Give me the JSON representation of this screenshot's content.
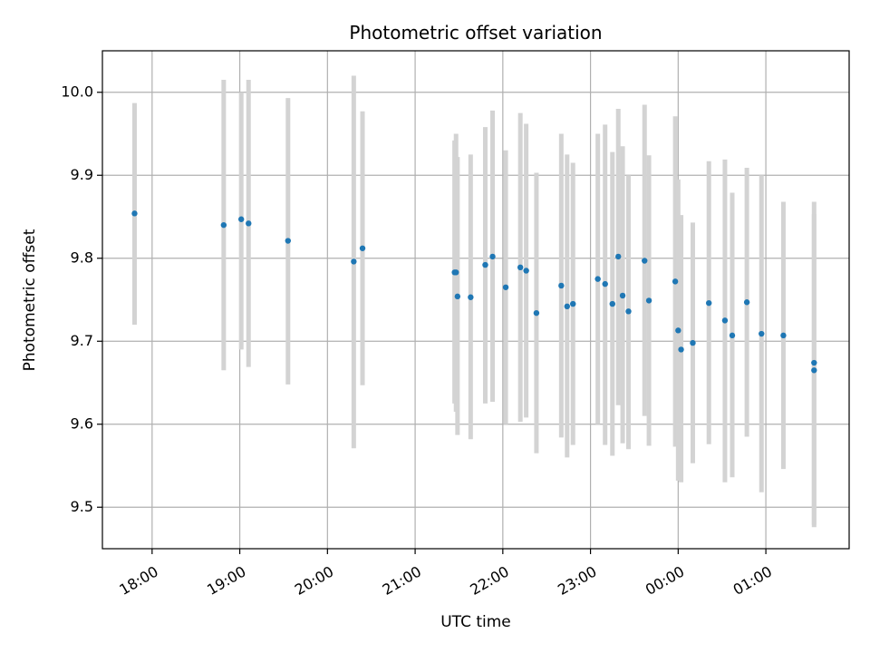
{
  "chart_data": {
    "type": "scatter",
    "title": "Photometric offset variation",
    "xlabel": "UTC time",
    "ylabel": "Photometric offset",
    "xlim": [
      "17:26",
      "01:57"
    ],
    "ylim": [
      9.45,
      10.05
    ],
    "grid": true,
    "x_ticks": [
      "18:00",
      "19:00",
      "20:00",
      "21:00",
      "22:00",
      "23:00",
      "00:00",
      "01:00"
    ],
    "y_ticks": [
      9.5,
      9.6,
      9.7,
      9.8,
      9.9,
      10.0
    ],
    "y_tick_labels": [
      "9.5",
      "9.6",
      "9.7",
      "9.8",
      "9.9",
      "10.0"
    ],
    "colors": {
      "point": "#1f77b4",
      "error_bar": "#d3d3d3",
      "grid": "#b0b0b0"
    },
    "points": [
      {
        "x": "17:48",
        "y": 9.854,
        "ylow": 9.72,
        "yhigh": 9.987
      },
      {
        "x": "18:49",
        "y": 9.84,
        "ylow": 9.665,
        "yhigh": 10.015
      },
      {
        "x": "19:01",
        "y": 9.847,
        "ylow": 9.69,
        "yhigh": 10.0
      },
      {
        "x": "19:06",
        "y": 9.842,
        "ylow": 9.669,
        "yhigh": 10.015
      },
      {
        "x": "19:33",
        "y": 9.821,
        "ylow": 9.648,
        "yhigh": 9.993
      },
      {
        "x": "20:18",
        "y": 9.796,
        "ylow": 9.571,
        "yhigh": 10.02
      },
      {
        "x": "20:24",
        "y": 9.812,
        "ylow": 9.647,
        "yhigh": 9.977
      },
      {
        "x": "21:27",
        "y": 9.783,
        "ylow": 9.625,
        "yhigh": 9.942
      },
      {
        "x": "21:28",
        "y": 9.783,
        "ylow": 9.615,
        "yhigh": 9.95
      },
      {
        "x": "21:29",
        "y": 9.754,
        "ylow": 9.587,
        "yhigh": 9.922
      },
      {
        "x": "21:38",
        "y": 9.753,
        "ylow": 9.582,
        "yhigh": 9.925
      },
      {
        "x": "21:48",
        "y": 9.792,
        "ylow": 9.625,
        "yhigh": 9.958
      },
      {
        "x": "21:53",
        "y": 9.802,
        "ylow": 9.627,
        "yhigh": 9.978
      },
      {
        "x": "22:02",
        "y": 9.765,
        "ylow": 9.6,
        "yhigh": 9.93
      },
      {
        "x": "22:12",
        "y": 9.789,
        "ylow": 9.603,
        "yhigh": 9.975
      },
      {
        "x": "22:16",
        "y": 9.785,
        "ylow": 9.608,
        "yhigh": 9.962
      },
      {
        "x": "22:23",
        "y": 9.734,
        "ylow": 9.565,
        "yhigh": 9.903
      },
      {
        "x": "22:40",
        "y": 9.767,
        "ylow": 9.584,
        "yhigh": 9.95
      },
      {
        "x": "22:44",
        "y": 9.742,
        "ylow": 9.56,
        "yhigh": 9.925
      },
      {
        "x": "22:48",
        "y": 9.745,
        "ylow": 9.575,
        "yhigh": 9.915
      },
      {
        "x": "23:05",
        "y": 9.775,
        "ylow": 9.6,
        "yhigh": 9.95
      },
      {
        "x": "23:10",
        "y": 9.769,
        "ylow": 9.575,
        "yhigh": 9.961
      },
      {
        "x": "23:15",
        "y": 9.745,
        "ylow": 9.562,
        "yhigh": 9.928
      },
      {
        "x": "23:19",
        "y": 9.802,
        "ylow": 9.623,
        "yhigh": 9.98
      },
      {
        "x": "23:22",
        "y": 9.755,
        "ylow": 9.577,
        "yhigh": 9.935
      },
      {
        "x": "23:26",
        "y": 9.736,
        "ylow": 9.57,
        "yhigh": 9.9
      },
      {
        "x": "23:37",
        "y": 9.797,
        "ylow": 9.61,
        "yhigh": 9.985
      },
      {
        "x": "23:40",
        "y": 9.749,
        "ylow": 9.574,
        "yhigh": 9.924
      },
      {
        "x": "23:58",
        "y": 9.772,
        "ylow": 9.573,
        "yhigh": 9.971
      },
      {
        "x": "00:00",
        "y": 9.713,
        "ylow": 9.532,
        "yhigh": 9.895
      },
      {
        "x": "00:02",
        "y": 9.69,
        "ylow": 9.53,
        "yhigh": 9.852
      },
      {
        "x": "00:10",
        "y": 9.698,
        "ylow": 9.553,
        "yhigh": 9.843
      },
      {
        "x": "00:21",
        "y": 9.746,
        "ylow": 9.576,
        "yhigh": 9.917
      },
      {
        "x": "00:32",
        "y": 9.725,
        "ylow": 9.53,
        "yhigh": 9.919
      },
      {
        "x": "00:37",
        "y": 9.707,
        "ylow": 9.536,
        "yhigh": 9.879
      },
      {
        "x": "00:47",
        "y": 9.747,
        "ylow": 9.585,
        "yhigh": 9.909
      },
      {
        "x": "00:57",
        "y": 9.709,
        "ylow": 9.518,
        "yhigh": 9.9
      },
      {
        "x": "01:12",
        "y": 9.707,
        "ylow": 9.546,
        "yhigh": 9.868
      },
      {
        "x": "01:33",
        "y": 9.674,
        "ylow": 9.476,
        "yhigh": 9.868
      },
      {
        "x": "01:33",
        "y": 9.665,
        "ylow": 9.479,
        "yhigh": 9.853
      }
    ]
  }
}
